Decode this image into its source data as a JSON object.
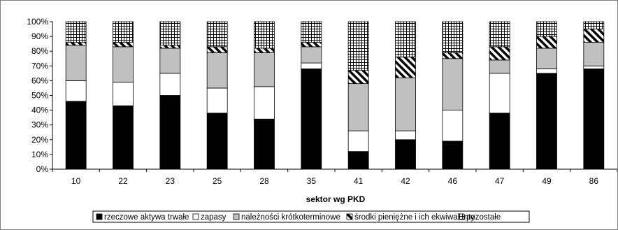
{
  "chart_data": {
    "type": "bar",
    "stacked": "percent",
    "title": "",
    "xlabel": "sektor wg PKD",
    "ylabel": "",
    "ylim": [
      0,
      100
    ],
    "yticks": [
      "0%",
      "10%",
      "20%",
      "30%",
      "40%",
      "50%",
      "60%",
      "70%",
      "80%",
      "90%",
      "100%"
    ],
    "grid": false,
    "legend_position": "bottom",
    "categories": [
      "10",
      "22",
      "23",
      "25",
      "28",
      "35",
      "41",
      "42",
      "46",
      "47",
      "49",
      "86"
    ],
    "series": [
      {
        "name": "rzeczowe aktywa trwałe",
        "pattern": "solid-black",
        "values": [
          46,
          43,
          50,
          38,
          34,
          68,
          12,
          20,
          19,
          38,
          65,
          68
        ]
      },
      {
        "name": "zapasy",
        "pattern": "white",
        "values": [
          14,
          16,
          15,
          17,
          22,
          4,
          14,
          6,
          21,
          27,
          3,
          2
        ]
      },
      {
        "name": "należności krótkoterminowe",
        "pattern": "light-gray",
        "values": [
          24,
          24,
          17,
          24,
          23,
          11,
          32,
          36,
          35,
          9,
          14,
          16
        ]
      },
      {
        "name": "środki pieniężne i ich ekwiwalenty",
        "pattern": "diagonal-stripes",
        "values": [
          2,
          3,
          2,
          4,
          3,
          3,
          9,
          14,
          4,
          9,
          8,
          9
        ]
      },
      {
        "name": "pozostałe",
        "pattern": "grid",
        "values": [
          14,
          14,
          16,
          17,
          18,
          14,
          33,
          24,
          21,
          17,
          10,
          5
        ]
      }
    ]
  }
}
